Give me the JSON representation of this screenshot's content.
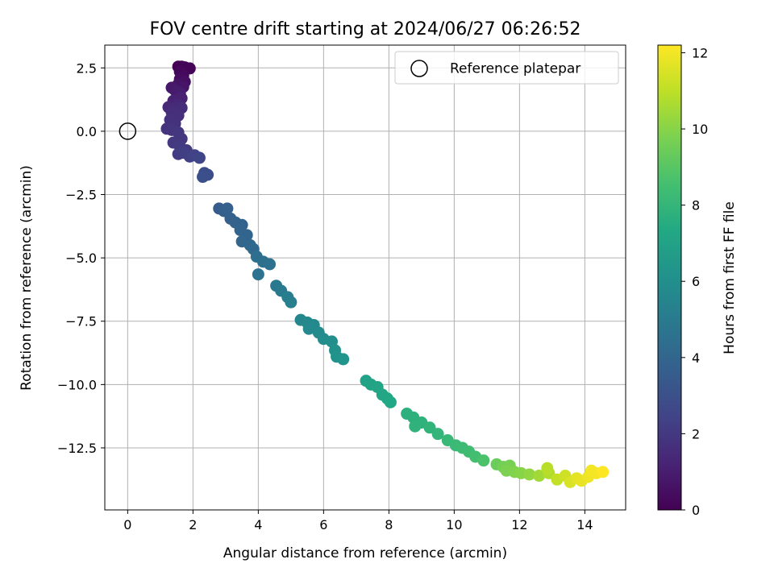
{
  "chart_data": {
    "type": "scatter",
    "title": "FOV centre drift starting at 2024/06/27 06:26:52",
    "xlabel": "Angular distance from reference (arcmin)",
    "ylabel": "Rotation from reference (arcmin)",
    "xlim": [
      -0.7,
      15.25
    ],
    "ylim": [
      -14.95,
      3.4
    ],
    "xticks": [
      0,
      2,
      4,
      6,
      8,
      10,
      12,
      14
    ],
    "yticks": [
      2.5,
      0.0,
      -2.5,
      -5.0,
      -7.5,
      -10.0,
      -12.5
    ],
    "xtick_labels": [
      "0",
      "2",
      "4",
      "6",
      "8",
      "10",
      "12",
      "14"
    ],
    "ytick_labels": [
      "2.5",
      "0.0",
      "−2.5",
      "−5.0",
      "−7.5",
      "−10.0",
      "−12.5"
    ],
    "grid": true,
    "legend": {
      "placement": "top-right",
      "entries": [
        {
          "label": "Reference platepar",
          "marker": "open-circle"
        }
      ]
    },
    "reference_point": {
      "x": 0.0,
      "y": 0.0
    },
    "colorbar": {
      "label": "Hours from first FF file",
      "colormap": "viridis",
      "range": [
        0,
        12.2
      ],
      "ticks": [
        0,
        2,
        4,
        6,
        8,
        10,
        12
      ],
      "tick_labels": [
        "0",
        "2",
        "4",
        "6",
        "8",
        "10",
        "12"
      ]
    },
    "points": [
      {
        "x": 1.55,
        "y": 2.55,
        "t": 0.0
      },
      {
        "x": 1.65,
        "y": 2.55,
        "t": 0.05
      },
      {
        "x": 1.75,
        "y": 2.52,
        "t": 0.1
      },
      {
        "x": 1.9,
        "y": 2.48,
        "t": 0.15
      },
      {
        "x": 1.6,
        "y": 2.35,
        "t": 0.2
      },
      {
        "x": 1.7,
        "y": 2.2,
        "t": 0.3
      },
      {
        "x": 1.6,
        "y": 2.05,
        "t": 0.4
      },
      {
        "x": 1.75,
        "y": 1.95,
        "t": 0.5
      },
      {
        "x": 1.55,
        "y": 1.85,
        "t": 0.6
      },
      {
        "x": 1.7,
        "y": 1.75,
        "t": 0.7
      },
      {
        "x": 1.35,
        "y": 1.72,
        "t": 0.8
      },
      {
        "x": 1.45,
        "y": 1.62,
        "t": 0.9
      },
      {
        "x": 1.6,
        "y": 1.5,
        "t": 1.0
      },
      {
        "x": 1.65,
        "y": 1.3,
        "t": 1.1
      },
      {
        "x": 1.4,
        "y": 1.2,
        "t": 1.2
      },
      {
        "x": 1.55,
        "y": 1.05,
        "t": 1.3
      },
      {
        "x": 1.25,
        "y": 0.95,
        "t": 1.4
      },
      {
        "x": 1.45,
        "y": 0.9,
        "t": 1.5
      },
      {
        "x": 1.65,
        "y": 0.92,
        "t": 1.55
      },
      {
        "x": 1.35,
        "y": 0.75,
        "t": 1.6
      },
      {
        "x": 1.55,
        "y": 0.62,
        "t": 1.65
      },
      {
        "x": 1.3,
        "y": 0.45,
        "t": 1.7
      },
      {
        "x": 1.45,
        "y": 0.3,
        "t": 1.75
      },
      {
        "x": 1.2,
        "y": 0.1,
        "t": 1.8
      },
      {
        "x": 1.35,
        "y": 0.05,
        "t": 1.85
      },
      {
        "x": 1.55,
        "y": -0.05,
        "t": 1.9
      },
      {
        "x": 1.65,
        "y": -0.3,
        "t": 1.95
      },
      {
        "x": 1.4,
        "y": -0.45,
        "t": 2.0
      },
      {
        "x": 1.6,
        "y": -0.6,
        "t": 2.05
      },
      {
        "x": 1.8,
        "y": -0.75,
        "t": 2.1
      },
      {
        "x": 1.55,
        "y": -0.9,
        "t": 2.15
      },
      {
        "x": 1.7,
        "y": -0.85,
        "t": 2.2
      },
      {
        "x": 1.9,
        "y": -1.0,
        "t": 2.3
      },
      {
        "x": 2.05,
        "y": -0.95,
        "t": 2.4
      },
      {
        "x": 2.2,
        "y": -1.05,
        "t": 2.5
      },
      {
        "x": 2.35,
        "y": -1.65,
        "t": 2.8
      },
      {
        "x": 2.45,
        "y": -1.72,
        "t": 2.9
      },
      {
        "x": 2.3,
        "y": -1.8,
        "t": 3.0
      },
      {
        "x": 2.8,
        "y": -3.05,
        "t": 3.5
      },
      {
        "x": 2.95,
        "y": -3.15,
        "t": 3.6
      },
      {
        "x": 3.05,
        "y": -3.05,
        "t": 3.65
      },
      {
        "x": 3.15,
        "y": -3.45,
        "t": 3.7
      },
      {
        "x": 3.3,
        "y": -3.6,
        "t": 3.8
      },
      {
        "x": 3.5,
        "y": -3.7,
        "t": 3.85
      },
      {
        "x": 3.45,
        "y": -3.9,
        "t": 3.9
      },
      {
        "x": 3.65,
        "y": -4.1,
        "t": 3.95
      },
      {
        "x": 3.5,
        "y": -4.35,
        "t": 4.0
      },
      {
        "x": 3.75,
        "y": -4.5,
        "t": 4.05
      },
      {
        "x": 3.85,
        "y": -4.65,
        "t": 4.1
      },
      {
        "x": 3.95,
        "y": -4.95,
        "t": 4.4
      },
      {
        "x": 4.15,
        "y": -5.15,
        "t": 4.5
      },
      {
        "x": 4.35,
        "y": -5.25,
        "t": 4.55
      },
      {
        "x": 4.0,
        "y": -5.65,
        "t": 4.6
      },
      {
        "x": 4.55,
        "y": -6.1,
        "t": 4.9
      },
      {
        "x": 4.7,
        "y": -6.3,
        "t": 5.0
      },
      {
        "x": 4.9,
        "y": -6.55,
        "t": 5.1
      },
      {
        "x": 5.0,
        "y": -6.75,
        "t": 5.2
      },
      {
        "x": 5.3,
        "y": -7.45,
        "t": 5.6
      },
      {
        "x": 5.5,
        "y": -7.55,
        "t": 5.65
      },
      {
        "x": 5.7,
        "y": -7.65,
        "t": 5.7
      },
      {
        "x": 5.55,
        "y": -7.8,
        "t": 5.75
      },
      {
        "x": 5.85,
        "y": -7.95,
        "t": 5.8
      },
      {
        "x": 6.0,
        "y": -8.2,
        "t": 5.9
      },
      {
        "x": 6.25,
        "y": -8.3,
        "t": 6.0
      },
      {
        "x": 6.35,
        "y": -8.65,
        "t": 6.1
      },
      {
        "x": 6.4,
        "y": -8.9,
        "t": 6.2
      },
      {
        "x": 6.6,
        "y": -9.0,
        "t": 6.3
      },
      {
        "x": 7.3,
        "y": -9.85,
        "t": 7.0
      },
      {
        "x": 7.45,
        "y": -10.0,
        "t": 7.05
      },
      {
        "x": 7.65,
        "y": -10.1,
        "t": 7.1
      },
      {
        "x": 7.8,
        "y": -10.4,
        "t": 7.2
      },
      {
        "x": 7.95,
        "y": -10.55,
        "t": 7.25
      },
      {
        "x": 8.05,
        "y": -10.7,
        "t": 7.3
      },
      {
        "x": 8.55,
        "y": -11.15,
        "t": 7.7
      },
      {
        "x": 8.75,
        "y": -11.3,
        "t": 7.75
      },
      {
        "x": 9.0,
        "y": -11.5,
        "t": 7.8
      },
      {
        "x": 8.8,
        "y": -11.65,
        "t": 7.85
      },
      {
        "x": 9.25,
        "y": -11.7,
        "t": 7.9
      },
      {
        "x": 9.5,
        "y": -11.95,
        "t": 8.0
      },
      {
        "x": 9.8,
        "y": -12.2,
        "t": 8.1
      },
      {
        "x": 10.05,
        "y": -12.4,
        "t": 8.2
      },
      {
        "x": 10.25,
        "y": -12.5,
        "t": 8.3
      },
      {
        "x": 10.45,
        "y": -12.65,
        "t": 8.4
      },
      {
        "x": 10.65,
        "y": -12.85,
        "t": 8.5
      },
      {
        "x": 10.9,
        "y": -13.0,
        "t": 8.7
      },
      {
        "x": 11.3,
        "y": -13.15,
        "t": 9.4
      },
      {
        "x": 11.5,
        "y": -13.25,
        "t": 9.6
      },
      {
        "x": 11.7,
        "y": -13.2,
        "t": 9.7
      },
      {
        "x": 11.6,
        "y": -13.4,
        "t": 9.8
      },
      {
        "x": 11.85,
        "y": -13.45,
        "t": 9.9
      },
      {
        "x": 12.05,
        "y": -13.5,
        "t": 10.0
      },
      {
        "x": 12.3,
        "y": -13.55,
        "t": 10.2
      },
      {
        "x": 12.6,
        "y": -13.6,
        "t": 10.5
      },
      {
        "x": 12.9,
        "y": -13.5,
        "t": 10.8
      },
      {
        "x": 12.85,
        "y": -13.3,
        "t": 10.9
      },
      {
        "x": 13.15,
        "y": -13.75,
        "t": 11.1
      },
      {
        "x": 13.4,
        "y": -13.6,
        "t": 11.3
      },
      {
        "x": 13.55,
        "y": -13.85,
        "t": 11.5
      },
      {
        "x": 13.75,
        "y": -13.7,
        "t": 11.7
      },
      {
        "x": 13.9,
        "y": -13.8,
        "t": 11.8
      },
      {
        "x": 14.1,
        "y": -13.65,
        "t": 11.9
      },
      {
        "x": 14.2,
        "y": -13.4,
        "t": 12.0
      },
      {
        "x": 14.35,
        "y": -13.5,
        "t": 12.05
      },
      {
        "x": 14.55,
        "y": -13.45,
        "t": 12.2
      }
    ]
  }
}
